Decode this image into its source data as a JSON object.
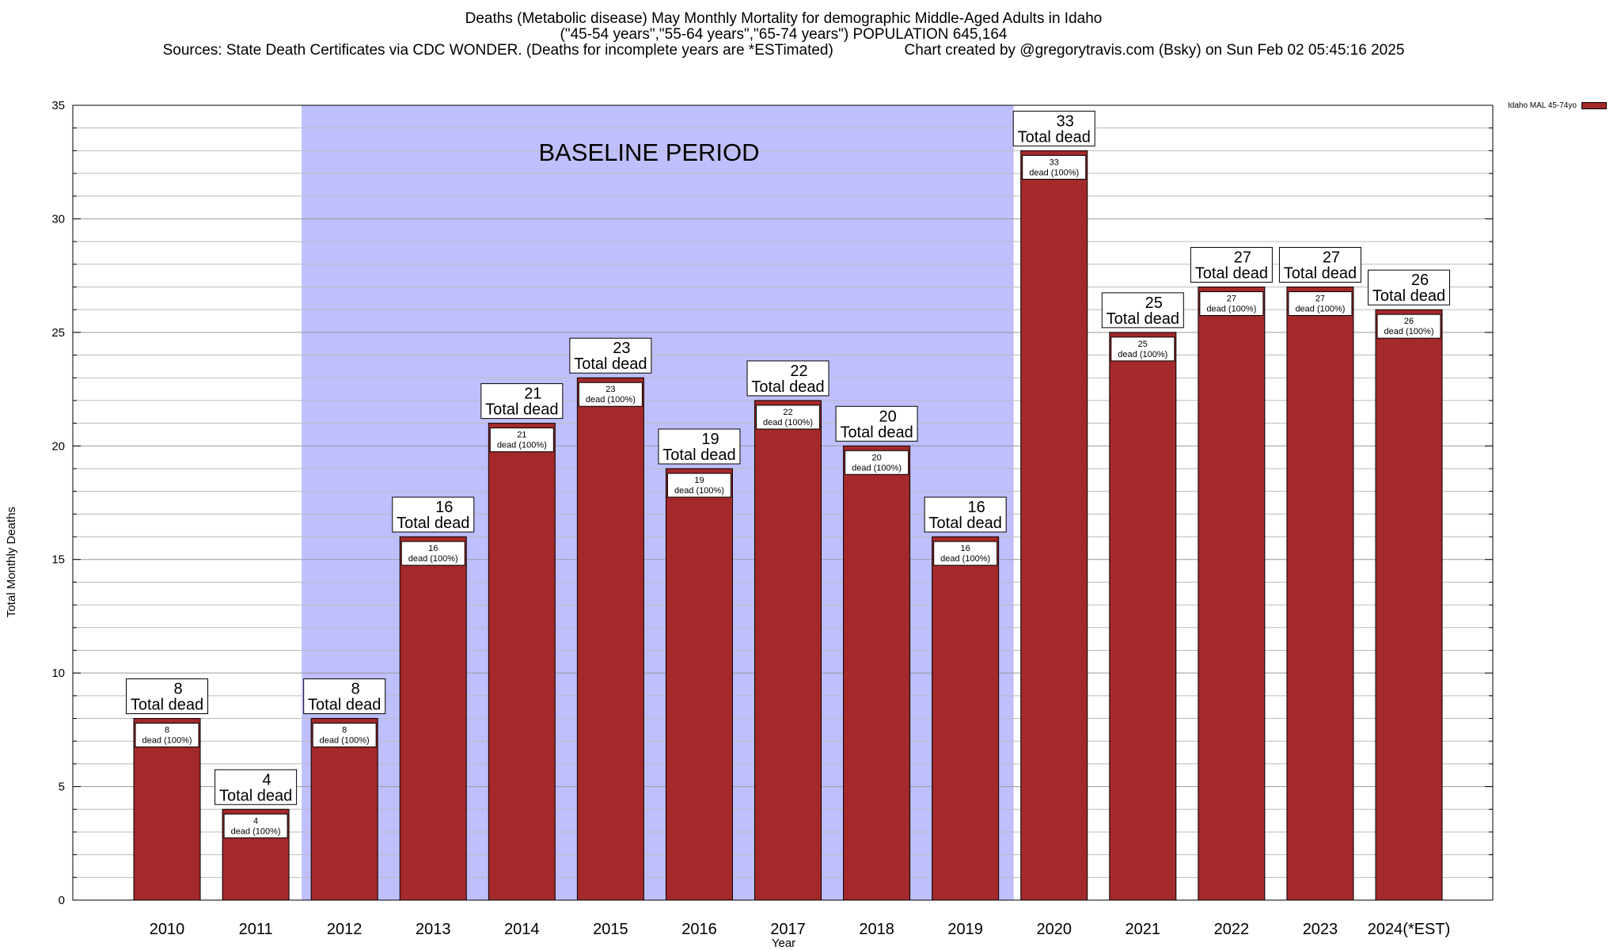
{
  "chart_data": {
    "type": "bar",
    "title_lines": [
      "Deaths (Metabolic disease) May Monthly Mortality for demographic Middle-Aged Adults in Idaho",
      "(\"45-54 years\",\"55-64 years\",\"65-74 years\") POPULATION 645,164",
      "Sources: State Death Certificates via CDC WONDER. (Deaths for incomplete years are *ESTimated)                 Chart created by @gregorytravis.com (Bsky) on Sun Feb 02 05:45:16 2025"
    ],
    "xlabel": "Year",
    "ylabel": "Total Monthly Deaths",
    "ylim": [
      0,
      35
    ],
    "yticks": [
      0,
      5,
      10,
      15,
      20,
      25,
      30,
      35
    ],
    "y_minor_step": 1,
    "categories": [
      "2010",
      "2011",
      "2012",
      "2013",
      "2014",
      "2015",
      "2016",
      "2017",
      "2018",
      "2019",
      "2020",
      "2021",
      "2022",
      "2023",
      "2024(*EST)"
    ],
    "series": [
      {
        "name": "Idaho MAL 45-74yo",
        "color": "#a3292a",
        "values": [
          8,
          4,
          8,
          16,
          21,
          23,
          19,
          22,
          20,
          16,
          33,
          25,
          27,
          27,
          26
        ]
      }
    ],
    "total_label_text": "Total dead",
    "inner_label_text": "dead (100%)",
    "baseline_period": {
      "label": "BASELINE PERIOD",
      "from_category": "2012",
      "to_category": "2019",
      "color": "#bfbffe"
    },
    "legend_position": "top-right",
    "grid": "horizontal"
  }
}
